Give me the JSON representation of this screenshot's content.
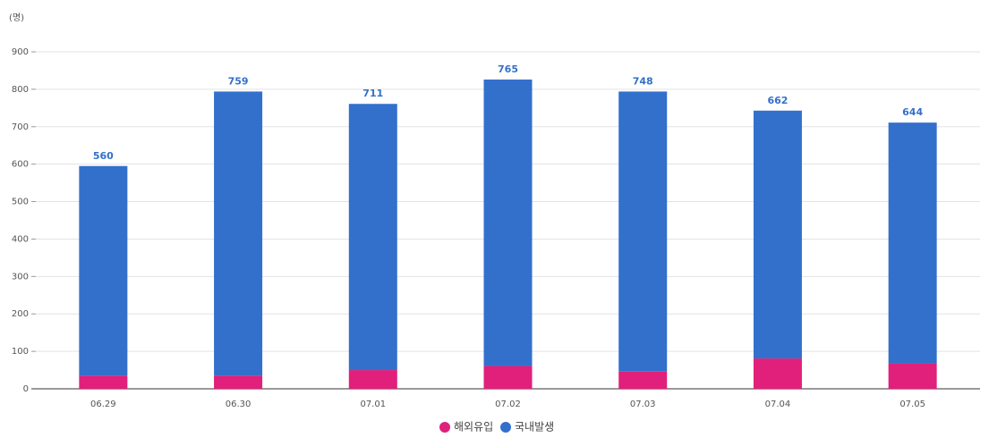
{
  "chart_data": {
    "type": "stacked_bar",
    "y_axis_label": "(명)",
    "categories": [
      "06.29",
      "06.30",
      "07.01",
      "07.02",
      "07.03",
      "07.04",
      "07.05"
    ],
    "series": [
      {
        "name": "해외유입",
        "color": "#e0207a",
        "values": [
          35,
          35,
          50,
          61,
          46,
          81,
          67
        ]
      },
      {
        "name": "국내발생",
        "color": "#3370cc",
        "values": [
          560,
          759,
          711,
          765,
          748,
          662,
          644
        ]
      }
    ],
    "ylim": [
      0,
      900
    ],
    "yticks": [
      0,
      100,
      200,
      300,
      400,
      500,
      600,
      700,
      800,
      900
    ],
    "grid": true,
    "legend": "bottom"
  }
}
